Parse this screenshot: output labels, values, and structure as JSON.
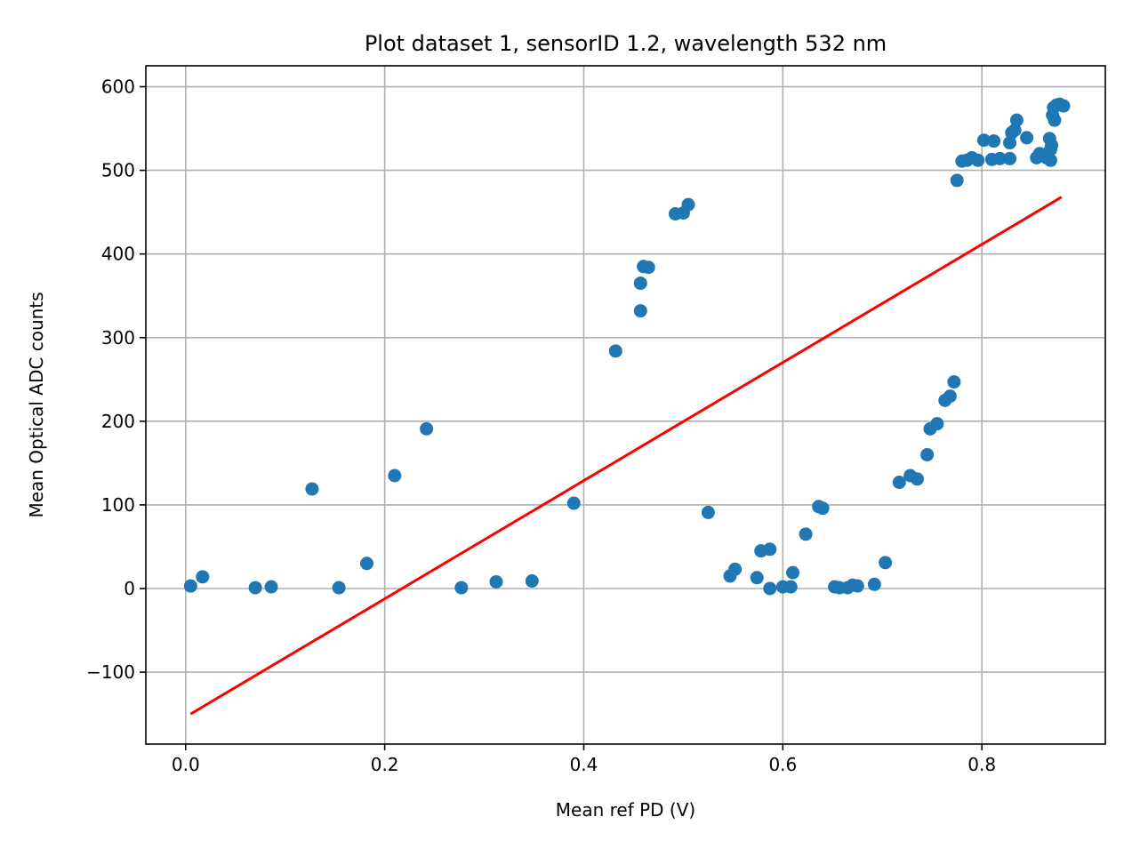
{
  "chart_data": {
    "type": "scatter",
    "title": "Plot dataset 1, sensorID 1.2, wavelength 532 nm",
    "xlabel": "Mean ref PD (V)",
    "ylabel": "Mean Optical ADC counts",
    "xlim": [
      -0.04,
      0.924
    ],
    "ylim": [
      -186,
      625
    ],
    "xticks": [
      0.0,
      0.2,
      0.4,
      0.6,
      0.8
    ],
    "xtick_labels": [
      "0.0",
      "0.2",
      "0.4",
      "0.6",
      "0.8"
    ],
    "yticks": [
      -100,
      0,
      100,
      200,
      300,
      400,
      500,
      600
    ],
    "ytick_labels": [
      "−100",
      "0",
      "100",
      "200",
      "300",
      "400",
      "500",
      "600"
    ],
    "grid": true,
    "colors": {
      "points": "#1f77b4",
      "fit": "#ff0000",
      "grid": "#b0b0b0"
    },
    "series": [
      {
        "kind": "scatter",
        "points": [
          [
            0.005,
            3
          ],
          [
            0.017,
            14
          ],
          [
            0.07,
            1
          ],
          [
            0.086,
            2
          ],
          [
            0.127,
            119
          ],
          [
            0.154,
            1
          ],
          [
            0.182,
            30
          ],
          [
            0.21,
            135
          ],
          [
            0.242,
            191
          ],
          [
            0.277,
            1
          ],
          [
            0.312,
            8
          ],
          [
            0.348,
            9
          ],
          [
            0.39,
            102
          ],
          [
            0.432,
            284
          ],
          [
            0.457,
            332
          ],
          [
            0.457,
            365
          ],
          [
            0.46,
            385
          ],
          [
            0.465,
            384
          ],
          [
            0.492,
            448
          ],
          [
            0.5,
            449
          ],
          [
            0.505,
            459
          ],
          [
            0.525,
            91
          ],
          [
            0.547,
            15
          ],
          [
            0.552,
            23
          ],
          [
            0.574,
            13
          ],
          [
            0.578,
            45
          ],
          [
            0.587,
            47
          ],
          [
            0.587,
            0
          ],
          [
            0.6,
            2
          ],
          [
            0.608,
            2
          ],
          [
            0.61,
            19
          ],
          [
            0.623,
            65
          ],
          [
            0.636,
            98
          ],
          [
            0.64,
            96
          ],
          [
            0.652,
            2
          ],
          [
            0.657,
            1
          ],
          [
            0.665,
            1
          ],
          [
            0.67,
            4
          ],
          [
            0.675,
            3
          ],
          [
            0.692,
            5
          ],
          [
            0.703,
            31
          ],
          [
            0.717,
            127
          ],
          [
            0.728,
            135
          ],
          [
            0.735,
            131
          ],
          [
            0.745,
            160
          ],
          [
            0.748,
            191
          ],
          [
            0.755,
            197
          ],
          [
            0.763,
            225
          ],
          [
            0.768,
            230
          ],
          [
            0.772,
            247
          ],
          [
            0.775,
            488
          ],
          [
            0.78,
            511
          ],
          [
            0.785,
            512
          ],
          [
            0.79,
            515
          ],
          [
            0.796,
            512
          ],
          [
            0.802,
            536
          ],
          [
            0.81,
            513
          ],
          [
            0.812,
            535
          ],
          [
            0.818,
            514
          ],
          [
            0.828,
            514
          ],
          [
            0.828,
            533
          ],
          [
            0.83,
            545
          ],
          [
            0.833,
            548
          ],
          [
            0.835,
            560
          ],
          [
            0.845,
            539
          ],
          [
            0.855,
            515
          ],
          [
            0.858,
            520
          ],
          [
            0.86,
            518
          ],
          [
            0.865,
            515
          ],
          [
            0.868,
            538
          ],
          [
            0.869,
            525
          ],
          [
            0.869,
            512
          ],
          [
            0.87,
            530
          ],
          [
            0.871,
            566
          ],
          [
            0.872,
            575
          ],
          [
            0.873,
            560
          ],
          [
            0.875,
            578
          ],
          [
            0.878,
            579
          ],
          [
            0.882,
            577
          ]
        ]
      },
      {
        "kind": "line",
        "points": [
          [
            0.005,
            -150
          ],
          [
            0.88,
            468
          ]
        ]
      }
    ]
  }
}
